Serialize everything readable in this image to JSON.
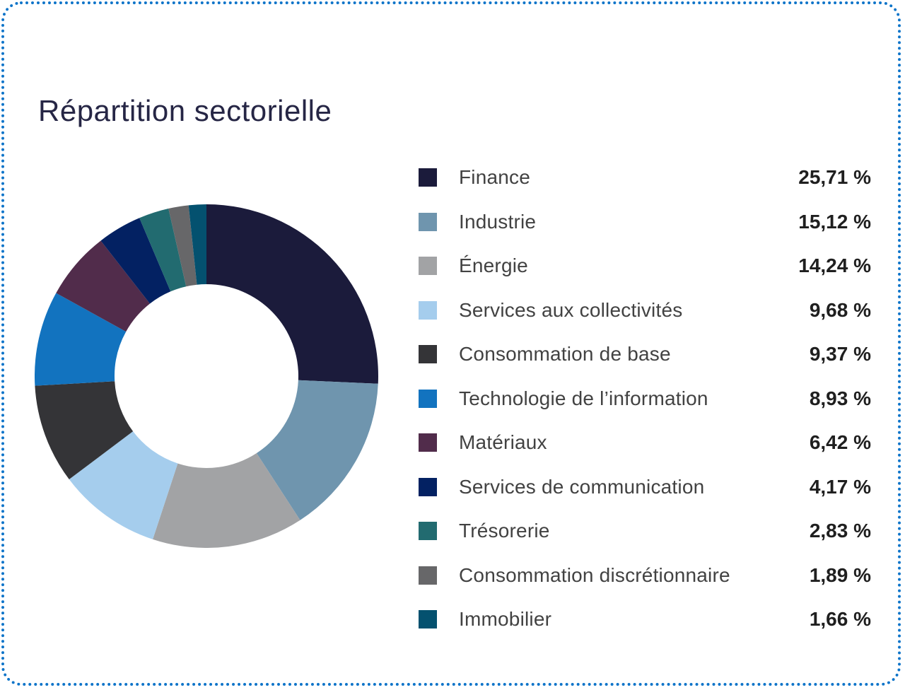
{
  "chart_data": {
    "type": "pie",
    "variant": "donut",
    "title": "Répartition sectorielle",
    "unit": "%",
    "start_angle_deg": 0,
    "direction": "clockwise",
    "inner_radius_ratio": 0.535,
    "legend_position": "right",
    "title_color": "#262645",
    "legend_label_color": "#424242",
    "legend_value_color": "#1f1f1f",
    "border_dot_color": "#0d74c9",
    "series": [
      {
        "label": "Finance",
        "value": 25.71,
        "display": "25,71 %",
        "color": "#1b1b3b"
      },
      {
        "label": "Industrie",
        "value": 15.12,
        "display": "15,12 %",
        "color": "#6f95ae"
      },
      {
        "label": "Énergie",
        "value": 14.24,
        "display": "14,24 %",
        "color": "#a2a3a5"
      },
      {
        "label": "Services aux collectivités",
        "value": 9.68,
        "display": "9,68 %",
        "color": "#a5cded"
      },
      {
        "label": "Consommation de base",
        "value": 9.37,
        "display": "9,37 %",
        "color": "#343437"
      },
      {
        "label": "Technologie de l’information",
        "value": 8.93,
        "display": "8,93 %",
        "color": "#1273bf"
      },
      {
        "label": "Matériaux",
        "value": 6.42,
        "display": "6,42 %",
        "color": "#512c4b"
      },
      {
        "label": "Services de communication",
        "value": 4.17,
        "display": "4,17 %",
        "color": "#032162"
      },
      {
        "label": "Trésorerie",
        "value": 2.83,
        "display": "2,83 %",
        "color": "#226b70"
      },
      {
        "label": "Consommation discrétionnaire",
        "value": 1.89,
        "display": "1,89 %",
        "color": "#676769"
      },
      {
        "label": "Immobilier",
        "value": 1.66,
        "display": "1,66 %",
        "color": "#04516f"
      }
    ]
  }
}
